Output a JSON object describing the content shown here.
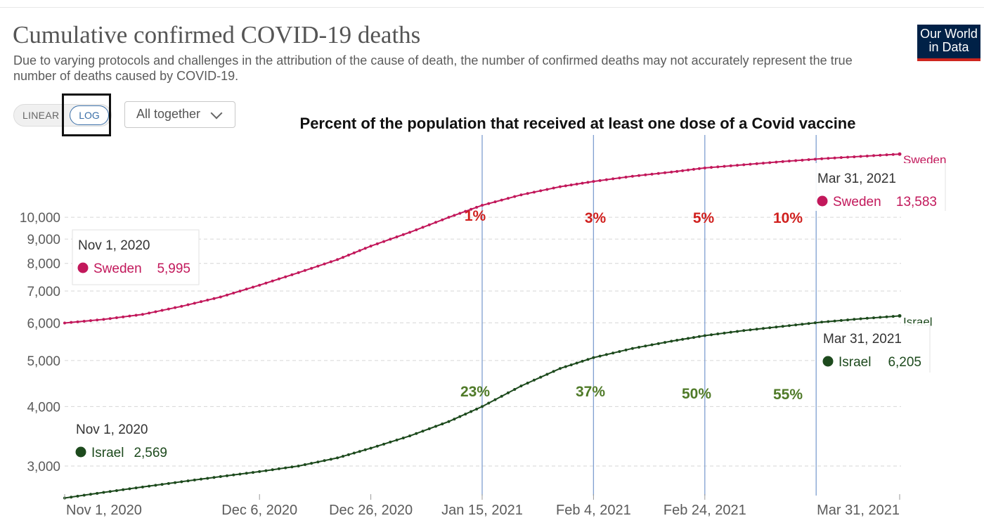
{
  "header": {
    "title": "Cumulative confirmed COVID-19 deaths",
    "subtitle": "Due to varying protocols and challenges in the attribution of the cause of death, the number of confirmed deaths may not accurately represent the true number of deaths caused by COVID-19.",
    "logo_text": "Our World in Data"
  },
  "controls": {
    "linear_label": "LINEAR",
    "log_label": "LOG",
    "facet_label": "All together",
    "selected_scale": "log"
  },
  "annotation": {
    "title": "Percent of the population that received at least one dose of a Covid vaccine"
  },
  "colors": {
    "sweden": "#c2185b",
    "israel": "#1d4a1d",
    "sweden_pct": "#d0201e",
    "israel_pct": "#4f7a28",
    "vline": "#7f9fd0",
    "grid": "#d6d6d6"
  },
  "chart_data": {
    "type": "line",
    "y_scale": "log",
    "ylim": [
      2600,
      14500
    ],
    "y_ticks": [
      3000,
      4000,
      5000,
      6000,
      7000,
      8000,
      9000,
      10000
    ],
    "y_tick_labels": [
      "3,000",
      "4,000",
      "5,000",
      "6,000",
      "7,000",
      "8,000",
      "9,000",
      "10,000"
    ],
    "x_range": [
      "2020-11-01",
      "2021-03-31"
    ],
    "x_ticks": [
      "2020-11-01",
      "2020-12-06",
      "2020-12-26",
      "2021-01-15",
      "2021-02-04",
      "2021-02-24",
      "2021-03-31"
    ],
    "x_tick_labels": [
      "Nov 1, 2020",
      "Dec 6, 2020",
      "Dec 26, 2020",
      "Jan 15, 2021",
      "Feb 4, 2021",
      "Feb 24, 2021",
      "Mar 31, 2021"
    ],
    "grid": "horizontal-dashed",
    "series": [
      {
        "name": "Sweden",
        "key": "sweden",
        "points": [
          [
            "2020-11-01",
            5995
          ],
          [
            "2020-11-08",
            6100
          ],
          [
            "2020-11-15",
            6250
          ],
          [
            "2020-11-22",
            6500
          ],
          [
            "2020-11-29",
            6800
          ],
          [
            "2020-12-06",
            7200
          ],
          [
            "2020-12-13",
            7650
          ],
          [
            "2020-12-20",
            8150
          ],
          [
            "2020-12-26",
            8700
          ],
          [
            "2021-01-02",
            9300
          ],
          [
            "2021-01-09",
            10000
          ],
          [
            "2021-01-15",
            10600
          ],
          [
            "2021-01-22",
            11150
          ],
          [
            "2021-01-29",
            11600
          ],
          [
            "2021-02-04",
            11900
          ],
          [
            "2021-02-11",
            12200
          ],
          [
            "2021-02-18",
            12450
          ],
          [
            "2021-02-24",
            12700
          ],
          [
            "2021-03-03",
            12900
          ],
          [
            "2021-03-10",
            13100
          ],
          [
            "2021-03-17",
            13280
          ],
          [
            "2021-03-24",
            13430
          ],
          [
            "2021-03-31",
            13583
          ]
        ]
      },
      {
        "name": "Israel",
        "key": "israel",
        "points": [
          [
            "2020-11-01",
            2569
          ],
          [
            "2020-11-08",
            2640
          ],
          [
            "2020-11-15",
            2710
          ],
          [
            "2020-11-22",
            2780
          ],
          [
            "2020-11-29",
            2850
          ],
          [
            "2020-12-06",
            2920
          ],
          [
            "2020-12-13",
            3000
          ],
          [
            "2020-12-20",
            3120
          ],
          [
            "2020-12-26",
            3270
          ],
          [
            "2021-01-02",
            3470
          ],
          [
            "2021-01-09",
            3720
          ],
          [
            "2021-01-15",
            4000
          ],
          [
            "2021-01-22",
            4420
          ],
          [
            "2021-01-29",
            4810
          ],
          [
            "2021-02-04",
            5070
          ],
          [
            "2021-02-11",
            5300
          ],
          [
            "2021-02-18",
            5490
          ],
          [
            "2021-02-24",
            5640
          ],
          [
            "2021-03-03",
            5780
          ],
          [
            "2021-03-10",
            5900
          ],
          [
            "2021-03-17",
            6020
          ],
          [
            "2021-03-24",
            6120
          ],
          [
            "2021-03-31",
            6205
          ]
        ]
      }
    ],
    "vaccination_markers": [
      {
        "date": "2021-01-15",
        "sweden": "1%",
        "israel": "23%"
      },
      {
        "date": "2021-02-04",
        "sweden": "3%",
        "israel": "37%"
      },
      {
        "date": "2021-02-24",
        "sweden": "5%",
        "israel": "50%"
      },
      {
        "date": "2021-03-16",
        "sweden": "10%",
        "israel": "55%"
      }
    ],
    "tooltips": [
      {
        "date": "Nov 1, 2020",
        "country": "Sweden",
        "value": "5,995",
        "key": "sweden"
      },
      {
        "date": "Mar 31, 2021",
        "country": "Sweden",
        "value": "13,583",
        "key": "sweden"
      },
      {
        "date": "Nov 1, 2020",
        "country": "Israel",
        "value": "2,569",
        "key": "israel"
      },
      {
        "date": "Mar 31, 2021",
        "country": "Israel",
        "value": "6,205",
        "key": "israel"
      }
    ]
  }
}
